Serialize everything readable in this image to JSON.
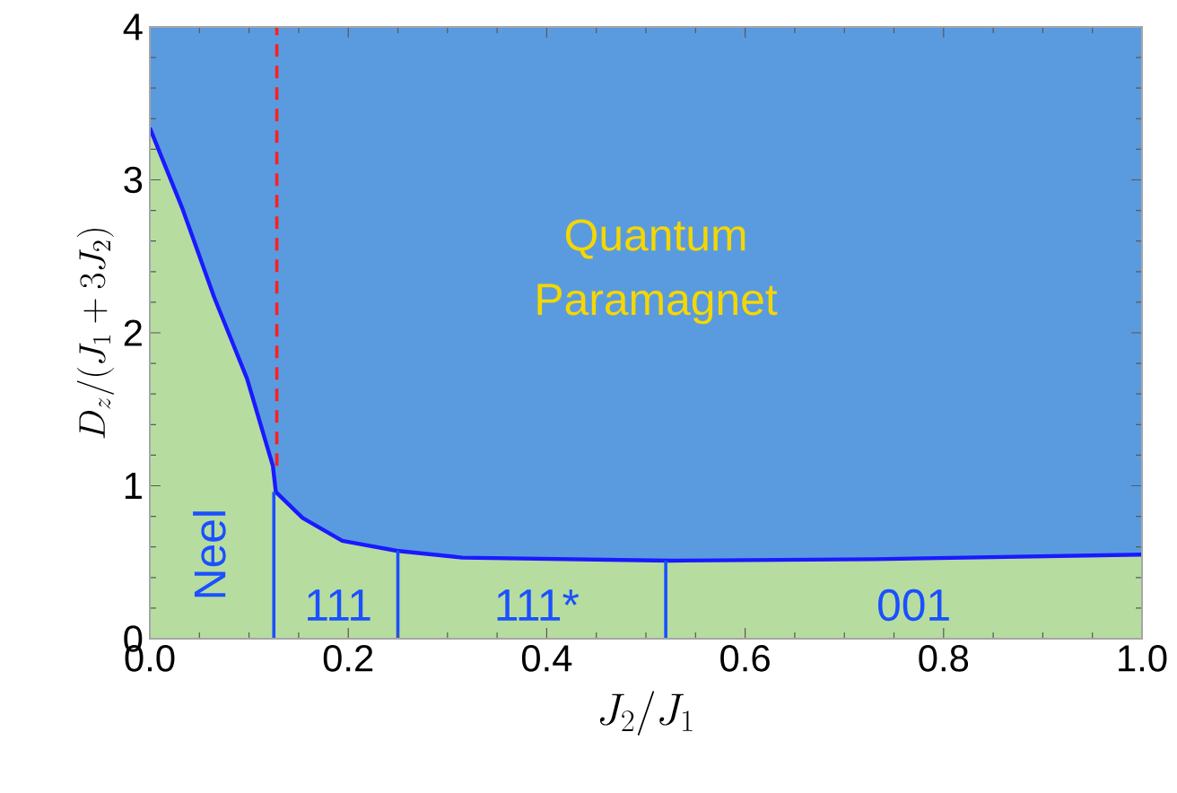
{
  "chart_data": {
    "type": "line",
    "xlabel": "J_2/J_1",
    "ylabel": "D_z/(J_1+3J_2)",
    "xlim": [
      0,
      1
    ],
    "ylim": [
      0,
      4
    ],
    "xticks": [
      {
        "value": 0,
        "label": "0.0"
      },
      {
        "value": 0.2,
        "label": "0.2"
      },
      {
        "value": 0.4,
        "label": "0.4"
      },
      {
        "value": 0.6,
        "label": "0.6"
      },
      {
        "value": 0.8,
        "label": "0.8"
      },
      {
        "value": 1,
        "label": "1.0"
      }
    ],
    "yticks": [
      0,
      1,
      2,
      3,
      4
    ],
    "series": [
      {
        "type": "area",
        "color": "#b7dca0",
        "x": [
          0,
          0.033,
          0.065,
          0.098,
          0.124,
          0.127,
          0.154,
          0.194,
          0.249,
          0.315,
          0.523,
          0.73,
          1.0
        ],
        "values": [
          3.34,
          2.81,
          2.23,
          1.7,
          1.13,
          0.96,
          0.79,
          0.64,
          0.575,
          0.53,
          0.51,
          0.52,
          0.55
        ]
      },
      {
        "color": "#1a1aff",
        "x": [
          0,
          0.033,
          0.065,
          0.098,
          0.124,
          0.127,
          0.154,
          0.194,
          0.249,
          0.315,
          0.523,
          0.73,
          1.0
        ],
        "values": [
          3.34,
          2.81,
          2.23,
          1.7,
          1.13,
          0.96,
          0.79,
          0.64,
          0.575,
          0.53,
          0.51,
          0.52,
          0.55
        ]
      },
      {
        "type": "line",
        "color": "#1a50ff",
        "x": [
          0.125,
          0.125
        ],
        "values": [
          0,
          0.96
        ]
      },
      {
        "type": "line",
        "color": "#1a50ff",
        "x": [
          0.25,
          0.25
        ],
        "values": [
          0,
          0.575
        ]
      },
      {
        "type": "line",
        "color": "#1a50ff",
        "x": [
          0.52,
          0.52
        ],
        "values": [
          0,
          0.51
        ]
      },
      {
        "type": "line",
        "color": "#ff2020",
        "line_style": "dashed",
        "x": [
          0.128,
          0.128
        ],
        "values": [
          1.13,
          4
        ]
      }
    ],
    "annotations": [
      "Quantum Paramagnet",
      "Neel",
      "111",
      "111*",
      "001"
    ]
  }
}
